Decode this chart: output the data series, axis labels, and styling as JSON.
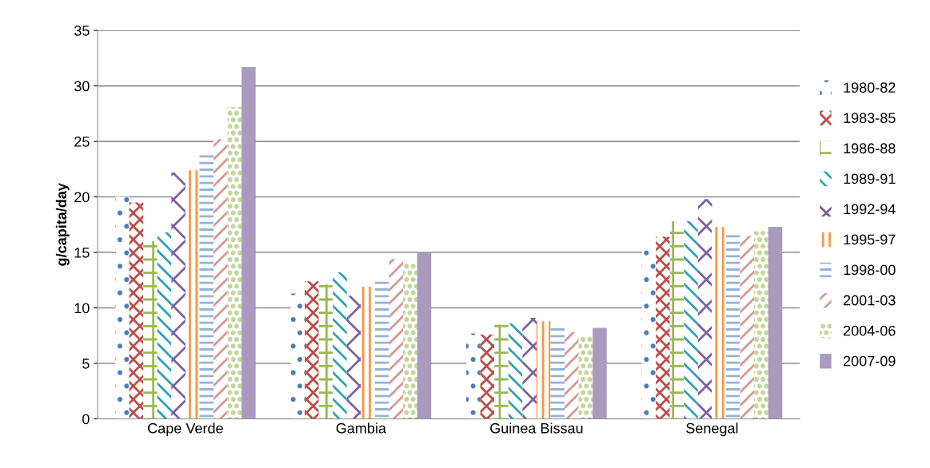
{
  "chart_data": {
    "type": "bar",
    "ylabel": "g/capita/day",
    "categories": [
      "Cape Verde",
      "Gambia",
      "Guinea Bissau",
      "Senegal"
    ],
    "series": [
      {
        "name": "1980-82",
        "color": "#4a7ebb",
        "values": [
          20.0,
          11.3,
          7.7,
          15.5
        ]
      },
      {
        "name": "1983-85",
        "color": "#be4b48",
        "values": [
          19.5,
          12.4,
          7.6,
          16.4
        ]
      },
      {
        "name": "1986-88",
        "color": "#98b954",
        "values": [
          16.0,
          12.1,
          8.5,
          17.8
        ]
      },
      {
        "name": "1989-91",
        "color": "#31a0b8",
        "values": [
          16.8,
          13.2,
          8.6,
          17.8
        ]
      },
      {
        "name": "1992-94",
        "color": "#7d5fa0",
        "values": [
          22.2,
          11.1,
          9.1,
          19.8
        ]
      },
      {
        "name": "1995-97",
        "color": "#f79646",
        "values": [
          22.4,
          11.9,
          8.8,
          17.3
        ]
      },
      {
        "name": "1998-00",
        "color": "#95b3d7",
        "values": [
          23.9,
          12.4,
          8.4,
          16.8
        ]
      },
      {
        "name": "2001-03",
        "color": "#d99694",
        "values": [
          25.2,
          14.4,
          7.8,
          16.5
        ]
      },
      {
        "name": "2004-06",
        "color": "#c3d69b",
        "values": [
          28.1,
          14.0,
          7.4,
          16.9
        ]
      },
      {
        "name": "2007-09",
        "color": "#a99bbd",
        "values": [
          31.7,
          15.0,
          8.2,
          17.3
        ]
      }
    ],
    "ylim": [
      0,
      35
    ],
    "yticks": [
      0,
      5,
      10,
      15,
      20,
      25,
      30,
      35
    ],
    "grid": "y",
    "legend": "right"
  }
}
